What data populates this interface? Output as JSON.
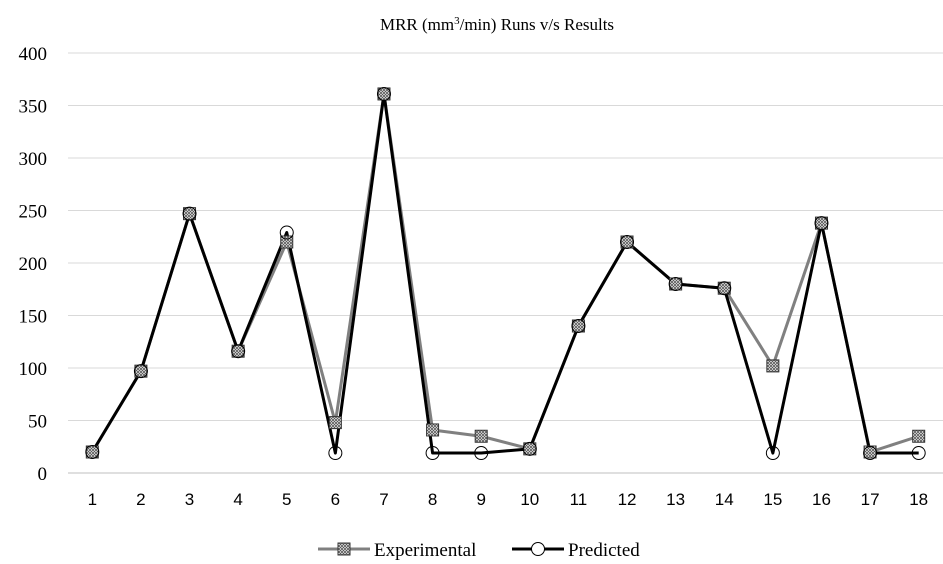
{
  "chart_data": {
    "type": "line",
    "title_prefix": "MRR (mm",
    "title_sup": "3",
    "title_suffix": "/min) Runs v/s Results",
    "categories": [
      "1",
      "2",
      "3",
      "4",
      "5",
      "6",
      "7",
      "8",
      "9",
      "10",
      "11",
      "12",
      "13",
      "14",
      "15",
      "16",
      "17",
      "18"
    ],
    "ylim": [
      0,
      400
    ],
    "yticks": [
      0,
      50,
      100,
      150,
      200,
      250,
      300,
      350,
      400
    ],
    "grid": true,
    "legend_position": "bottom",
    "series": [
      {
        "name": "Experimental",
        "color": "#808080",
        "marker": "hatched-square",
        "values": [
          20,
          97,
          247,
          116,
          220,
          48,
          361,
          41,
          35,
          23,
          140,
          220,
          180,
          176,
          102,
          238,
          20,
          35
        ]
      },
      {
        "name": "Predicted",
        "color": "#000000",
        "marker": "circle",
        "values": [
          20,
          97,
          247,
          116,
          229,
          19,
          361,
          19,
          19,
          23,
          140,
          220,
          180,
          176,
          19,
          238,
          19,
          19
        ]
      }
    ]
  }
}
